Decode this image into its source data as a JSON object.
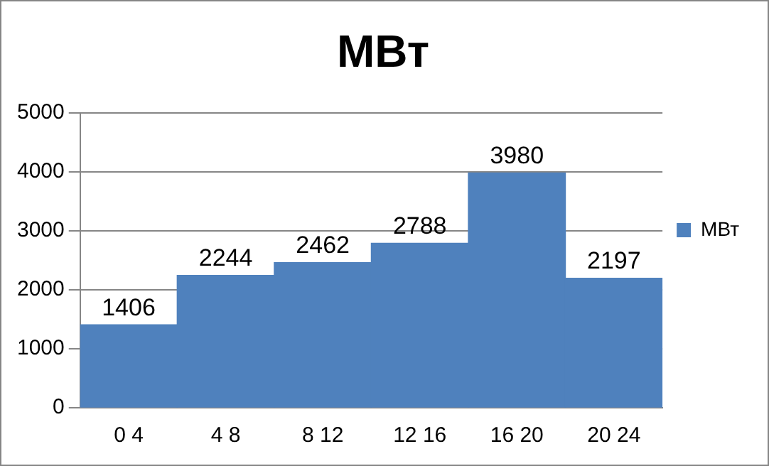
{
  "chart_data": {
    "type": "bar",
    "title": "МВт",
    "categories": [
      "0 4",
      "4 8",
      "8 12",
      "12 16",
      "16 20",
      "20 24"
    ],
    "series": [
      {
        "name": "МВт",
        "color": "#4f81bd",
        "values": [
          1406,
          2244,
          2462,
          2788,
          3980,
          2197
        ]
      }
    ],
    "ylim": [
      0,
      5000
    ],
    "yticks": [
      0,
      1000,
      2000,
      3000,
      4000,
      5000
    ],
    "grid": "y",
    "legend": "right",
    "data_labels": true
  }
}
